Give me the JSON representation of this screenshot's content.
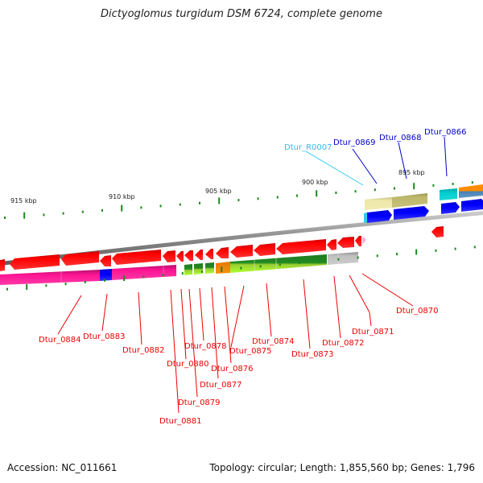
{
  "title": "Dictyoglomus turgidum DSM 6724, complete genome",
  "footer": {
    "accession": "Accession: NC_011661",
    "summary": "Topology: circular; Length: 1,855,560 bp; Genes: 1,796"
  },
  "colors": {
    "forward_cds": "#0000ee",
    "reverse_cds": "#ff0000",
    "rna": "#33ccee",
    "label_forward": "#0000cc",
    "label_reverse": "#ee0000",
    "label_rna": "#33bbee",
    "tick": "#1a8a1a"
  },
  "scale_labels": [
    {
      "text": "915 kbp",
      "kbp": 915
    },
    {
      "text": "910 kbp",
      "kbp": 910
    },
    {
      "text": "905 kbp",
      "kbp": 905
    },
    {
      "text": "900 kbp",
      "kbp": 900
    },
    {
      "text": "895 kbp",
      "kbp": 895
    }
  ],
  "forward_labels": [
    {
      "text": "Dtur_R0007",
      "type": "rna"
    },
    {
      "text": "Dtur_0869",
      "type": "cds"
    },
    {
      "text": "Dtur_0868",
      "type": "cds"
    },
    {
      "text": "Dtur_0866",
      "type": "cds"
    }
  ],
  "reverse_labels": [
    {
      "text": "Dtur_0884"
    },
    {
      "text": "Dtur_0883"
    },
    {
      "text": "Dtur_0882"
    },
    {
      "text": "Dtur_0881"
    },
    {
      "text": "Dtur_0880"
    },
    {
      "text": "Dtur_0879"
    },
    {
      "text": "Dtur_0878"
    },
    {
      "text": "Dtur_0877"
    },
    {
      "text": "Dtur_0876"
    },
    {
      "text": "Dtur_0875"
    },
    {
      "text": "Dtur_0874"
    },
    {
      "text": "Dtur_0873"
    },
    {
      "text": "Dtur_0872"
    },
    {
      "text": "Dtur_0871"
    },
    {
      "text": "Dtur_0870"
    }
  ]
}
